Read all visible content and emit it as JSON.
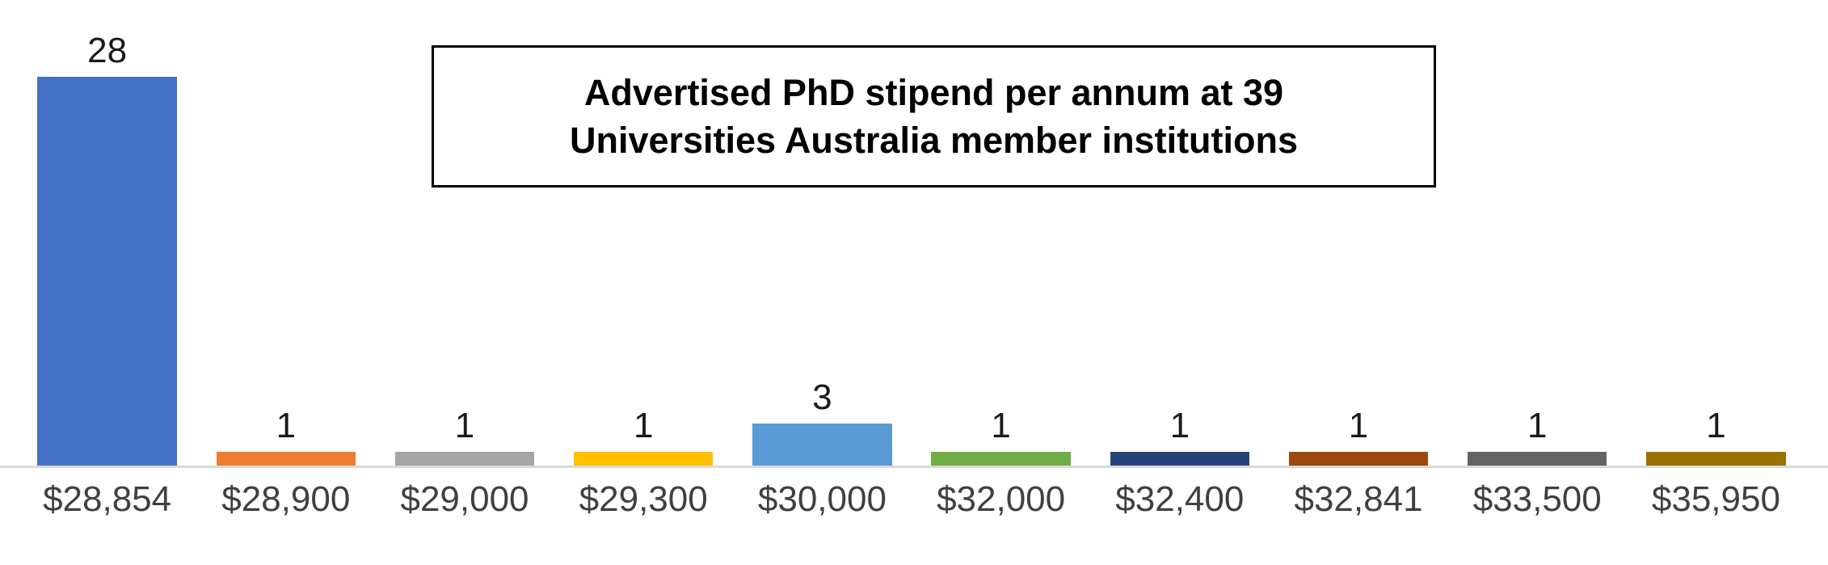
{
  "chart_data": {
    "type": "bar",
    "title": "Advertised PhD stipend per annum at 39 Universities Australia member institutions",
    "title_lines": [
      "Advertised PhD stipend per annum at 39",
      "Universities Australia member institutions"
    ],
    "categories": [
      "$28,854",
      "$28,900",
      "$29,000",
      "$29,300",
      "$30,000",
      "$32,000",
      "$32,400",
      "$32,841",
      "$33,500",
      "$35,950"
    ],
    "values": [
      28,
      1,
      1,
      1,
      3,
      1,
      1,
      1,
      1,
      1
    ],
    "bar_colors": [
      "#4472C4",
      "#ED7D31",
      "#A5A5A5",
      "#FFC000",
      "#5B9BD5",
      "#70AD47",
      "#264478",
      "#9E480E",
      "#636363",
      "#997300"
    ],
    "xlabel": "",
    "ylabel": "",
    "ylim": [
      0,
      28
    ],
    "grid": false,
    "legend": "none",
    "data_labels": true,
    "axis_line_color": "#D9D9D9",
    "value_label_color": "#1A1A1A",
    "category_label_color": "#404040"
  }
}
